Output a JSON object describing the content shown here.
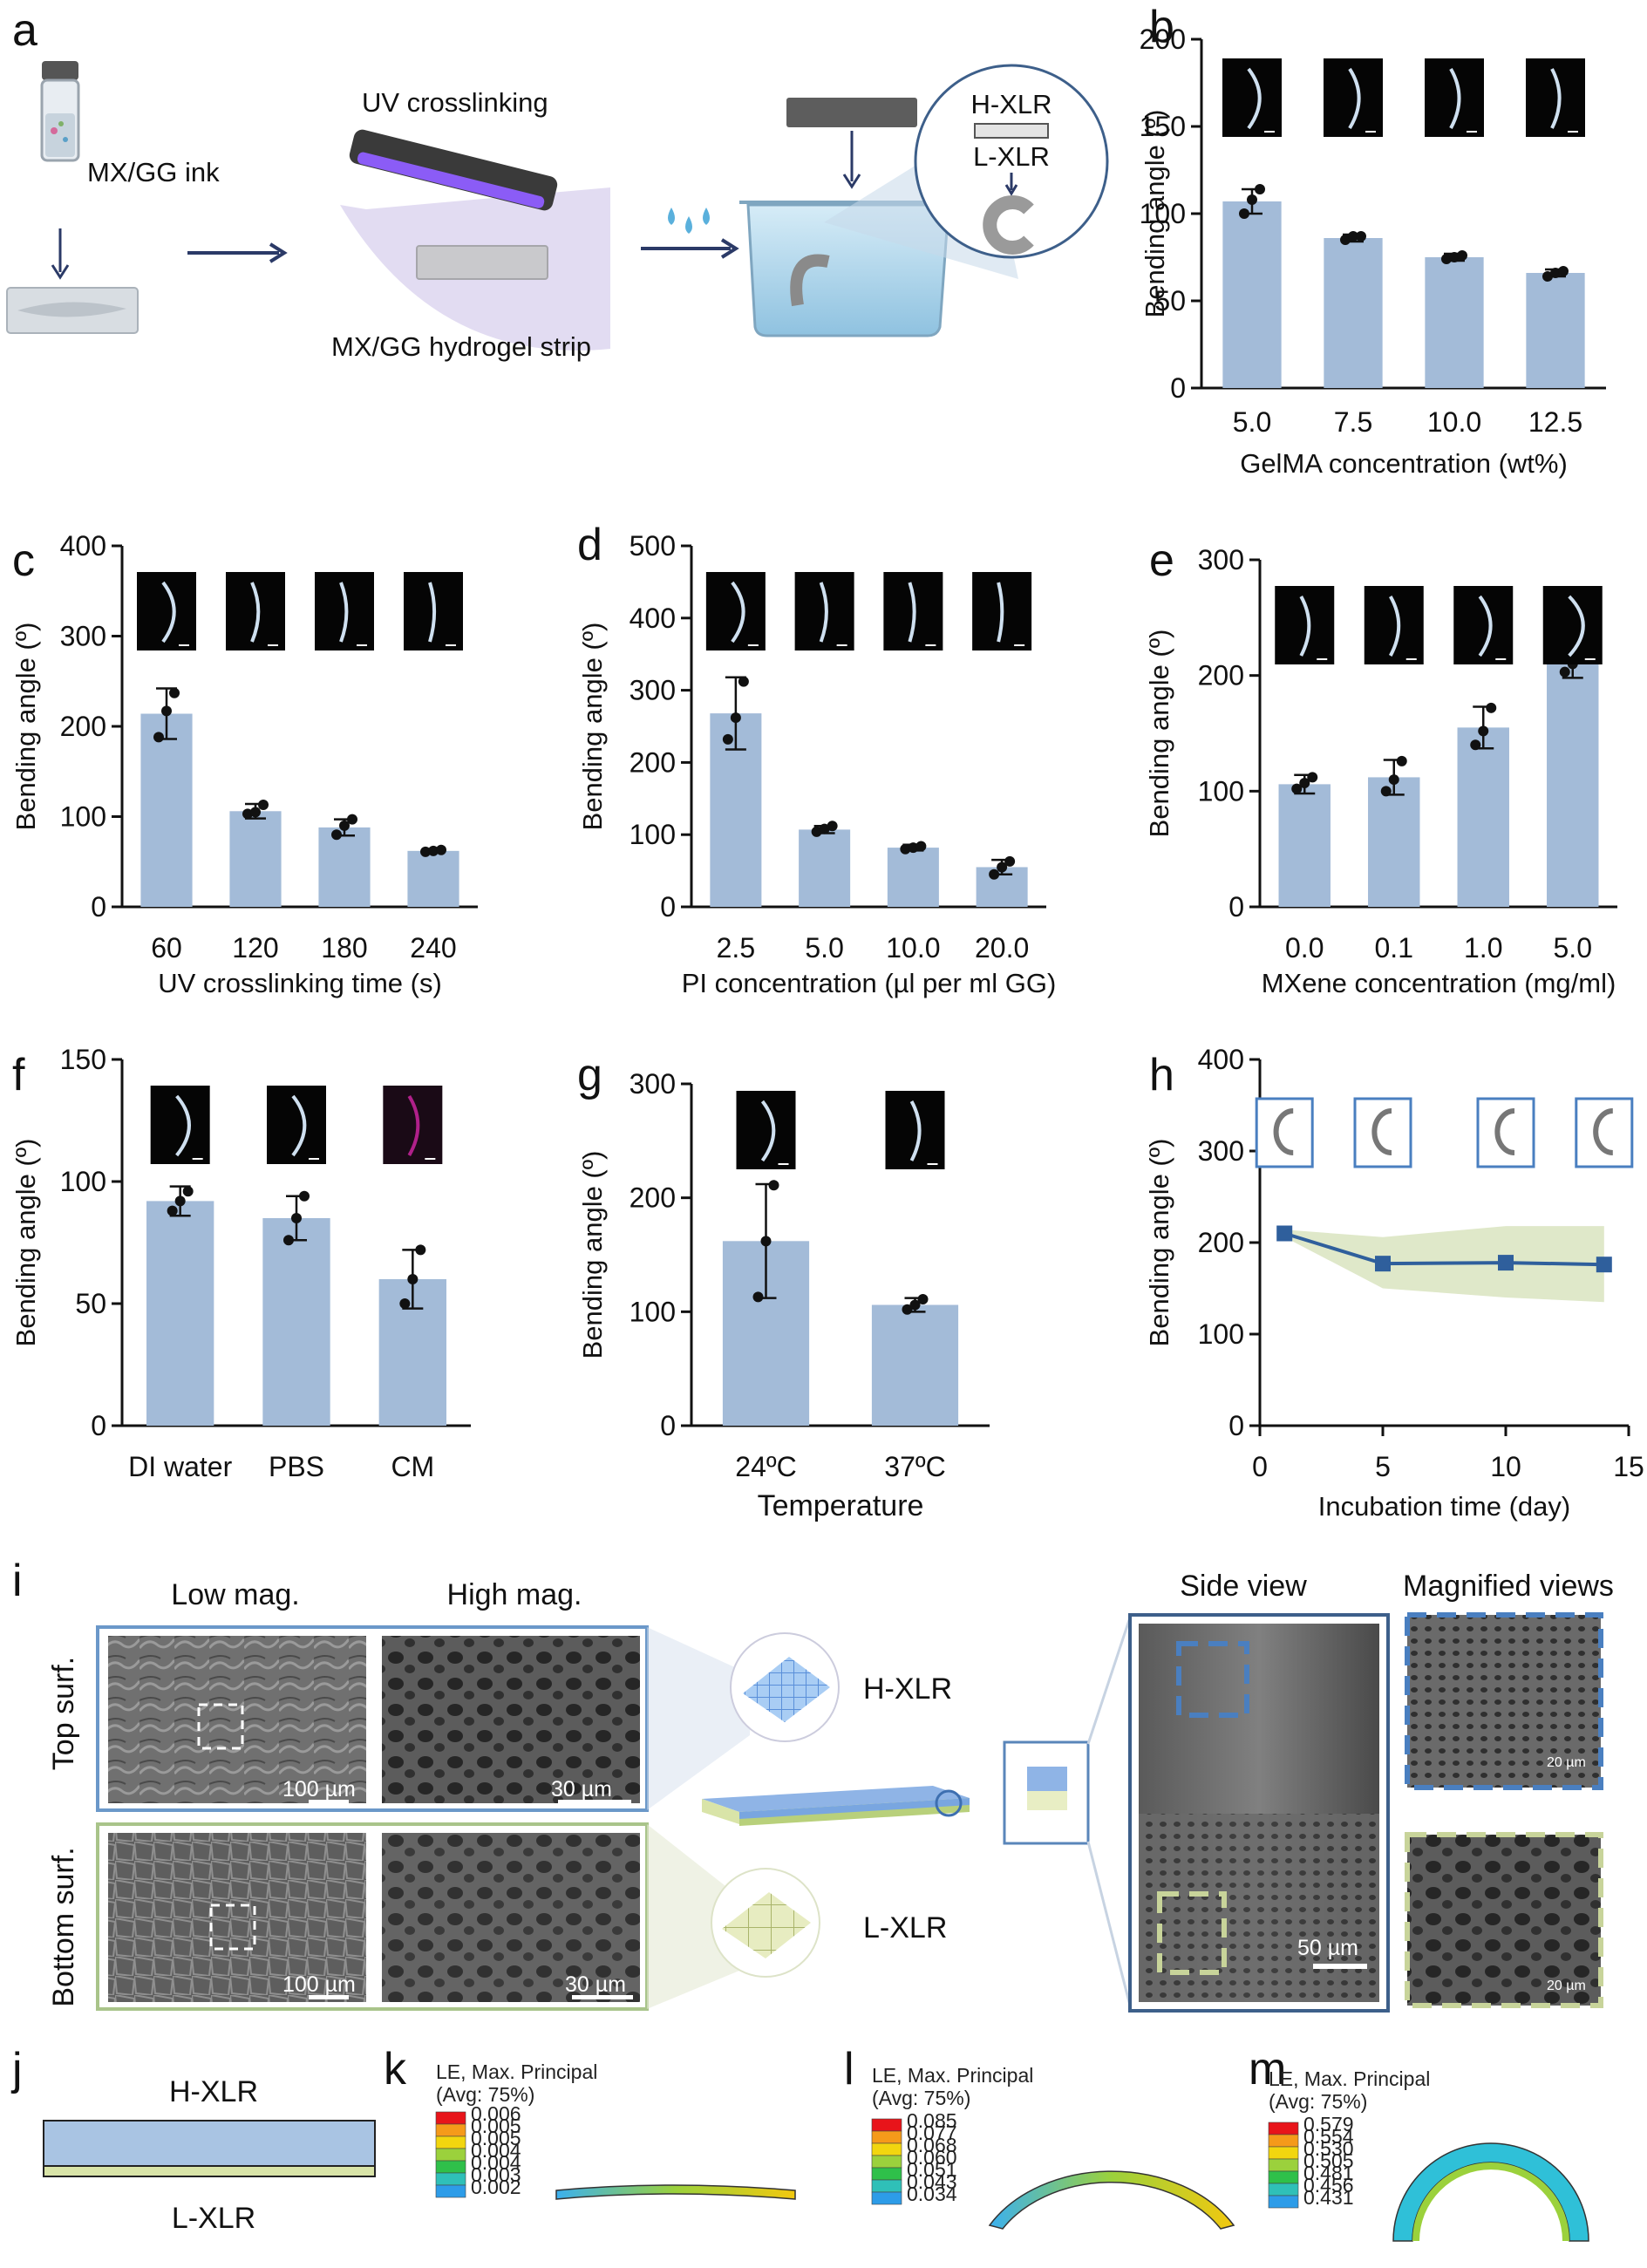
{
  "panel_letters": [
    "a",
    "b",
    "c",
    "d",
    "e",
    "f",
    "g",
    "h",
    "i",
    "j",
    "k",
    "l",
    "m"
  ],
  "schematic": {
    "ink_label": "MX/GG ink",
    "uv_label": "UV crosslinking",
    "strip_label": "MX/GG hydrogel strip",
    "inset_top": "H-XLR",
    "inset_bottom": "L-XLR"
  },
  "chart_data": [
    {
      "panel": "b",
      "type": "bar",
      "categories": [
        "5.0",
        "7.5",
        "10.0",
        "12.5"
      ],
      "values": [
        107,
        86,
        75,
        66
      ],
      "errors": [
        7,
        2,
        2,
        2
      ],
      "points": [
        [
          100,
          108,
          114
        ],
        [
          85,
          87,
          87
        ],
        [
          74,
          75,
          76
        ],
        [
          64,
          66,
          67
        ]
      ],
      "ylim": [
        0,
        200
      ],
      "yticks": [
        0,
        50,
        100,
        150,
        200
      ],
      "xlabel": "GelMA concentration (wt%)",
      "ylabel": "Bending angle (º)"
    },
    {
      "panel": "c",
      "type": "bar",
      "categories": [
        "60",
        "120",
        "180",
        "240"
      ],
      "values": [
        214,
        106,
        88,
        62
      ],
      "errors": [
        28,
        8,
        9,
        2
      ],
      "points": [
        [
          188,
          217,
          237
        ],
        [
          103,
          105,
          113
        ],
        [
          80,
          90,
          97
        ],
        [
          61,
          62,
          63
        ]
      ],
      "ylim": [
        0,
        400
      ],
      "yticks": [
        0,
        100,
        200,
        300,
        400
      ],
      "xlabel": "UV crosslinking time (s)",
      "ylabel": "Bending angle (º)"
    },
    {
      "panel": "d",
      "type": "bar",
      "categories": [
        "2.5",
        "5.0",
        "10.0",
        "20.0"
      ],
      "values": [
        268,
        107,
        82,
        55
      ],
      "errors": [
        50,
        5,
        4,
        10
      ],
      "points": [
        [
          232,
          262,
          312
        ],
        [
          104,
          108,
          112
        ],
        [
          80,
          82,
          84
        ],
        [
          45,
          55,
          63
        ]
      ],
      "ylim": [
        0,
        500
      ],
      "yticks": [
        0,
        100,
        200,
        300,
        400,
        500
      ],
      "xlabel": "PI concentration (µl per ml GG)",
      "ylabel": "Bending angle (º)"
    },
    {
      "panel": "e",
      "type": "bar",
      "categories": [
        "0.0",
        "0.1",
        "1.0",
        "5.0"
      ],
      "values": [
        106,
        112,
        155,
        210
      ],
      "errors": [
        8,
        15,
        18,
        12
      ],
      "points": [
        [
          102,
          107,
          112
        ],
        [
          100,
          110,
          126
        ],
        [
          140,
          152,
          172
        ],
        [
          203,
          210,
          218
        ]
      ],
      "ylim": [
        0,
        300
      ],
      "yticks": [
        0,
        100,
        200,
        300
      ],
      "xlabel": "MXene concentration (mg/ml)",
      "ylabel": "Bending angle (º)"
    },
    {
      "panel": "f",
      "type": "bar",
      "categories": [
        "DI water",
        "PBS",
        "CM"
      ],
      "values": [
        92,
        85,
        60
      ],
      "errors": [
        6,
        9,
        12
      ],
      "points": [
        [
          88,
          92,
          96
        ],
        [
          76,
          85,
          94
        ],
        [
          50,
          60,
          72
        ]
      ],
      "ylim": [
        0,
        150
      ],
      "yticks": [
        0,
        50,
        100,
        150
      ],
      "xlabel": "",
      "ylabel": "Bending angle (º)"
    },
    {
      "panel": "g",
      "type": "bar",
      "categories": [
        "24ºC",
        "37ºC"
      ],
      "values": [
        162,
        106
      ],
      "errors": [
        50,
        6
      ],
      "points": [
        [
          113,
          162,
          211
        ],
        [
          102,
          106,
          111
        ]
      ],
      "ylim": [
        0,
        300
      ],
      "yticks": [
        0,
        100,
        200,
        300
      ],
      "xlabel": "Temperature",
      "ylabel": "Bending angle (º)"
    },
    {
      "panel": "h",
      "type": "line",
      "x": [
        1,
        5,
        10,
        14
      ],
      "values": [
        210,
        177,
        178,
        176
      ],
      "band_upper": [
        214,
        206,
        218,
        218
      ],
      "band_lower": [
        206,
        150,
        140,
        135
      ],
      "xlim": [
        0,
        15
      ],
      "xticks": [
        0,
        5,
        10,
        15
      ],
      "ylim": [
        0,
        400
      ],
      "yticks": [
        0,
        100,
        200,
        300,
        400
      ],
      "xlabel": "Incubation time (day)",
      "ylabel": "Bending angle (º)"
    }
  ],
  "sem_panel": {
    "col_low": "Low mag.",
    "col_high": "High mag.",
    "row_top": "Top surf.",
    "row_bottom": "Bottom surf.",
    "layer_top": "H-XLR",
    "layer_bottom": "L-XLR",
    "side_view": "Side view",
    "magnified": "Magnified views",
    "scale_100": "100 µm",
    "scale_30": "30 µm",
    "scale_50": "50 µm",
    "scale_20": "20 µm"
  },
  "panel_j": {
    "top": "H-XLR",
    "bottom": "L-XLR"
  },
  "fea": [
    {
      "panel": "k",
      "title": "LE, Max. Principal",
      "avg": "(Avg: 75%)",
      "legend": [
        "0.006",
        "0.005",
        "0.005",
        "0.004",
        "0.004",
        "0.003",
        "0.002"
      ]
    },
    {
      "panel": "l",
      "title": "LE, Max. Principal",
      "avg": "(Avg: 75%)",
      "legend": [
        "0.085",
        "0.077",
        "0.068",
        "0.060",
        "0.051",
        "0.043",
        "0.034"
      ]
    },
    {
      "panel": "m",
      "title": "LE, Max. Principal",
      "avg": "(Avg: 75%)",
      "legend": [
        "0.579",
        "0.554",
        "0.530",
        "0.505",
        "0.481",
        "0.456",
        "0.431"
      ]
    }
  ],
  "colors": {
    "bar": "#a3bbd8",
    "line": "#2f5f9c",
    "band": "#dfe8c9",
    "ring": "#3d5f8a",
    "uv": "#8b5cf6"
  }
}
